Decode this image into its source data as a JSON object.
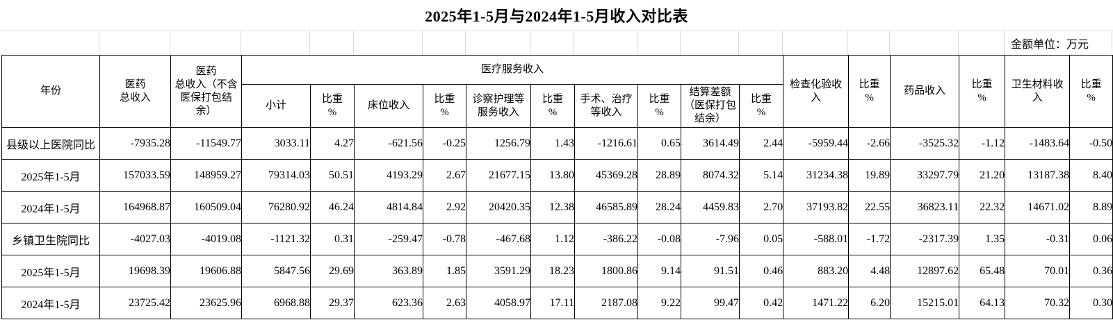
{
  "title": "2025年1-5月与2024年1-5月收入对比表",
  "unit_note": "金额单位：万元",
  "table": {
    "columns": {
      "year": "年份",
      "total_income": "医药\n总收入",
      "total_income_excl": "医药\n总收入（不含\n医保打包结\n余）",
      "medical_service_group": "医疗服务收入",
      "subtotal": "小计",
      "proportion": "比重\n%",
      "bed_income": "床位收入",
      "exam_nursing_income": "诊察护理等\n服务收入",
      "surgery_income": "手术、治疗\n等收入",
      "settlement_diff": "结算差额\n（医保打包\n结余）",
      "inspection_income": "检查化验收\n入",
      "drug_income": "药品收入",
      "material_income": "卫生材料收\n入"
    },
    "rows": [
      {
        "label": "县级以上医院同比",
        "values": [
          "-7935.28",
          "-11549.77",
          "3033.11",
          "4.27",
          "-621.56",
          "-0.25",
          "1256.79",
          "1.43",
          "-1216.61",
          "0.65",
          "3614.49",
          "2.44",
          "-5959.44",
          "-2.66",
          "-3525.32",
          "-1.12",
          "-1483.64",
          "-0.50"
        ]
      },
      {
        "label": "2025年1-5月",
        "values": [
          "157033.59",
          "148959.27",
          "79314.03",
          "50.51",
          "4193.29",
          "2.67",
          "21677.15",
          "13.80",
          "45369.28",
          "28.89",
          "8074.32",
          "5.14",
          "31234.38",
          "19.89",
          "33297.79",
          "21.20",
          "13187.38",
          "8.40"
        ]
      },
      {
        "label": "2024年1-5月",
        "values": [
          "164968.87",
          "160509.04",
          "76280.92",
          "46.24",
          "4814.84",
          "2.92",
          "20420.35",
          "12.38",
          "46585.89",
          "28.24",
          "4459.83",
          "2.70",
          "37193.82",
          "22.55",
          "36823.11",
          "22.32",
          "14671.02",
          "8.89"
        ]
      },
      {
        "label": "乡镇卫生院同比",
        "values": [
          "-4027.03",
          "-4019.08",
          "-1121.32",
          "0.31",
          "-259.47",
          "-0.78",
          "-467.68",
          "1.12",
          "-386.22",
          "-0.08",
          "-7.96",
          "0.05",
          "-588.01",
          "-1.72",
          "-2317.39",
          "1.35",
          "-0.31",
          "0.06"
        ]
      },
      {
        "label": "2025年1-5月",
        "values": [
          "19698.39",
          "19606.88",
          "5847.56",
          "29.69",
          "363.89",
          "1.85",
          "3591.29",
          "18.23",
          "1800.86",
          "9.14",
          "91.51",
          "0.46",
          "883.20",
          "4.48",
          "12897.62",
          "65.48",
          "70.01",
          "0.36"
        ]
      },
      {
        "label": "2024年1-5月",
        "values": [
          "23725.42",
          "23625.96",
          "6968.88",
          "29.37",
          "623.36",
          "2.63",
          "4058.97",
          "17.11",
          "2187.08",
          "9.22",
          "99.47",
          "0.42",
          "1471.22",
          "6.20",
          "15215.01",
          "64.13",
          "70.32",
          "0.30"
        ]
      }
    ]
  }
}
